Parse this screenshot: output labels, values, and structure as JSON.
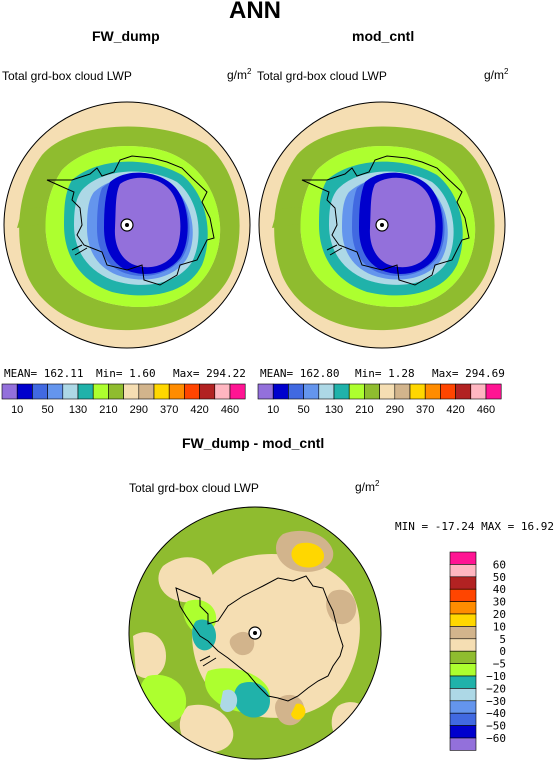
{
  "figure": {
    "title": "ANN"
  },
  "panels": [
    {
      "title": "FW_dump",
      "variable": "Total grd-box cloud LWP",
      "units_base": "g/m",
      "units_sup": "2",
      "stats": {
        "mean": "MEAN= 162.11",
        "min": "Min=    1.60",
        "max": "Max= 294.22"
      }
    },
    {
      "title": "mod_cntl",
      "variable": "Total grd-box cloud LWP",
      "units_base": "g/m",
      "units_sup": "2",
      "stats": {
        "mean": "MEAN= 162.80",
        "min": "Min=    1.28",
        "max": "Max= 294.69"
      }
    }
  ],
  "colorbar": {
    "colors": [
      "#9370DB",
      "#0000CD",
      "#4169E1",
      "#6495ED",
      "#ADD8E6",
      "#20B2AA",
      "#ADFF2F",
      "#8FBC2F",
      "#F5DEB3",
      "#D2B48C",
      "#FFD700",
      "#FF8C00",
      "#FF4500",
      "#B22222",
      "#FFB6C1",
      "#FF1493"
    ],
    "labels": [
      "10",
      "50",
      "130",
      "210",
      "290",
      "370",
      "420",
      "460"
    ]
  },
  "diff": {
    "title": "FW_dump - mod_cntl",
    "variable": "Total grd-box cloud LWP",
    "units_base": "g/m",
    "units_sup": "2",
    "minmax": "MIN = -17.24 MAX =  16.92",
    "colors": [
      "#FF1493",
      "#FFB6C1",
      "#B22222",
      "#FF4500",
      "#FF8C00",
      "#FFD700",
      "#D2B48C",
      "#F5DEB3",
      "#8FBC2F",
      "#ADFF2F",
      "#20B2AA",
      "#ADD8E6",
      "#6495ED",
      "#4169E1",
      "#0000CD",
      "#9370DB"
    ],
    "labels": [
      "60",
      "50",
      "40",
      "30",
      "20",
      "10",
      "5",
      "0",
      "−5",
      "−10",
      "−20",
      "−30",
      "−40",
      "−50",
      "−60"
    ]
  }
}
